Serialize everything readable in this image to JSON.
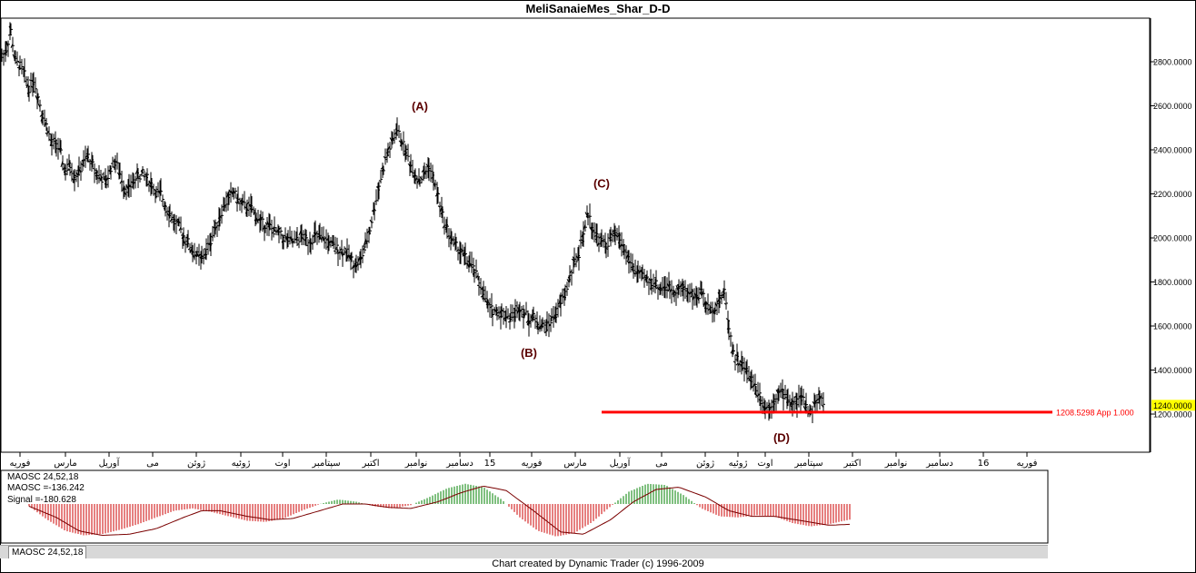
{
  "title": "MeliSanaieMes_Shar_D-D",
  "footer": "Chart created by Dynamic Trader  (c) 1996-2009",
  "colors": {
    "up": "#008000",
    "down": "#cc0000",
    "line": "#000000",
    "level": "#ff0000",
    "highlight": "#ffff00",
    "wave_label": "#5a0000"
  },
  "chart_data": [
    {
      "type": "line",
      "style": "ohlc-bars",
      "y_ticks": [
        "2800.0000",
        "2600.0000",
        "2400.0000",
        "2200.0000",
        "2000.0000",
        "1800.0000",
        "1600.0000",
        "1400.0000",
        "1200.0000"
      ],
      "ylim": [
        1000,
        2960
      ],
      "x_labels": [
        "فوریه",
        "مارس",
        "آوریل",
        "می",
        "ژوئن",
        "ژوئیه",
        "اوت",
        "سپتامبر",
        "اکتبر",
        "نوامبر",
        "دسامبر",
        "15",
        "فوریه",
        "مارس",
        "آوریل",
        "می",
        "ژوئن",
        "ژوئیه",
        "اوت",
        "سپتامبر",
        "اکتبر",
        "نوامبر",
        "دسامبر",
        "16",
        "فوریه"
      ],
      "x_label_index": [
        0,
        50,
        98,
        146,
        194,
        243,
        289,
        337,
        386,
        436,
        484,
        517,
        563,
        611,
        660,
        706,
        754,
        790,
        820,
        868,
        916,
        964,
        1012,
        1060,
        1108
      ],
      "last_price": "1240.0000",
      "level": {
        "value": 1208.5298,
        "label": "1208.5298 App 1.000"
      },
      "wave_labels": [
        {
          "text": "(A)",
          "i": 440,
          "price": 2530
        },
        {
          "text": "(B)",
          "i": 560,
          "price": 1575
        },
        {
          "text": "(C)",
          "i": 640,
          "price": 2180
        },
        {
          "text": "(D)",
          "i": 838,
          "price": 1190
        }
      ],
      "series": [
        {
          "name": "price",
          "points": [
            [
              0,
              2820
            ],
            [
              5,
              2860
            ],
            [
              10,
              2940
            ],
            [
              15,
              2800
            ],
            [
              20,
              2780
            ],
            [
              25,
              2740
            ],
            [
              30,
              2680
            ],
            [
              35,
              2720
            ],
            [
              40,
              2640
            ],
            [
              45,
              2560
            ],
            [
              50,
              2500
            ],
            [
              55,
              2420
            ],
            [
              60,
              2430
            ],
            [
              65,
              2380
            ],
            [
              70,
              2300
            ],
            [
              75,
              2330
            ],
            [
              80,
              2280
            ],
            [
              85,
              2300
            ],
            [
              90,
              2340
            ],
            [
              95,
              2370
            ],
            [
              100,
              2330
            ],
            [
              105,
              2290
            ],
            [
              110,
              2270
            ],
            [
              115,
              2250
            ],
            [
              120,
              2320
            ],
            [
              125,
              2350
            ],
            [
              130,
              2290
            ],
            [
              135,
              2230
            ],
            [
              140,
              2220
            ],
            [
              145,
              2260
            ],
            [
              150,
              2280
            ],
            [
              155,
              2290
            ],
            [
              160,
              2270
            ],
            [
              165,
              2240
            ],
            [
              170,
              2200
            ],
            [
              175,
              2200
            ],
            [
              180,
              2150
            ],
            [
              185,
              2110
            ],
            [
              190,
              2070
            ],
            [
              195,
              2050
            ],
            [
              200,
              2010
            ],
            [
              205,
              1980
            ],
            [
              210,
              1940
            ],
            [
              215,
              1920
            ],
            [
              220,
              1900
            ],
            [
              225,
              1940
            ],
            [
              230,
              1990
            ],
            [
              235,
              2050
            ],
            [
              240,
              2100
            ],
            [
              245,
              2150
            ],
            [
              250,
              2180
            ],
            [
              255,
              2210
            ],
            [
              260,
              2170
            ],
            [
              265,
              2150
            ],
            [
              270,
              2140
            ],
            [
              275,
              2130
            ],
            [
              280,
              2100
            ],
            [
              285,
              2070
            ],
            [
              290,
              2060
            ],
            [
              295,
              2050
            ],
            [
              300,
              2030
            ],
            [
              305,
              2020
            ],
            [
              310,
              2000
            ],
            [
              315,
              1990
            ],
            [
              320,
              1980
            ],
            [
              325,
              1990
            ],
            [
              330,
              2010
            ],
            [
              335,
              1990
            ],
            [
              340,
              1990
            ],
            [
              345,
              2010
            ],
            [
              350,
              2000
            ],
            [
              355,
              1990
            ],
            [
              360,
              1980
            ],
            [
              365,
              1960
            ],
            [
              370,
              1950
            ],
            [
              375,
              1940
            ],
            [
              380,
              1930
            ],
            [
              385,
              1900
            ],
            [
              390,
              1880
            ],
            [
              395,
              1900
            ],
            [
              400,
              1960
            ],
            [
              405,
              2040
            ],
            [
              410,
              2140
            ],
            [
              415,
              2240
            ],
            [
              420,
              2320
            ],
            [
              425,
              2390
            ],
            [
              430,
              2440
            ],
            [
              435,
              2490
            ],
            [
              440,
              2440
            ],
            [
              445,
              2390
            ],
            [
              450,
              2330
            ],
            [
              455,
              2290
            ],
            [
              460,
              2260
            ],
            [
              465,
              2290
            ],
            [
              470,
              2330
            ],
            [
              475,
              2260
            ],
            [
              480,
              2190
            ],
            [
              485,
              2100
            ],
            [
              490,
              2040
            ],
            [
              495,
              1990
            ],
            [
              500,
              1960
            ],
            [
              505,
              1940
            ],
            [
              510,
              1910
            ],
            [
              515,
              1880
            ],
            [
              520,
              1850
            ],
            [
              525,
              1800
            ],
            [
              530,
              1750
            ],
            [
              535,
              1690
            ],
            [
              540,
              1670
            ],
            [
              545,
              1665
            ],
            [
              550,
              1660
            ],
            [
              555,
              1650
            ],
            [
              560,
              1640
            ],
            [
              565,
              1660
            ],
            [
              570,
              1690
            ],
            [
              575,
              1660
            ],
            [
              580,
              1630
            ],
            [
              585,
              1640
            ],
            [
              590,
              1610
            ],
            [
              595,
              1600
            ],
            [
              600,
              1600
            ],
            [
              605,
              1630
            ],
            [
              610,
              1660
            ],
            [
              615,
              1700
            ],
            [
              620,
              1750
            ],
            [
              625,
              1820
            ],
            [
              630,
              1890
            ],
            [
              635,
              1930
            ],
            [
              640,
              2020
            ],
            [
              645,
              2110
            ],
            [
              650,
              2050
            ],
            [
              655,
              2000
            ],
            [
              660,
              1980
            ],
            [
              665,
              1970
            ],
            [
              670,
              1990
            ],
            [
              675,
              2020
            ],
            [
              680,
              1990
            ],
            [
              685,
              1950
            ],
            [
              690,
              1900
            ],
            [
              695,
              1860
            ],
            [
              700,
              1840
            ],
            [
              705,
              1820
            ],
            [
              710,
              1810
            ],
            [
              715,
              1800
            ],
            [
              720,
              1790
            ],
            [
              725,
              1770
            ],
            [
              730,
              1780
            ],
            [
              735,
              1770
            ],
            [
              740,
              1760
            ],
            [
              745,
              1770
            ],
            [
              750,
              1770
            ],
            [
              755,
              1760
            ],
            [
              760,
              1740
            ],
            [
              765,
              1730
            ],
            [
              770,
              1760
            ],
            [
              775,
              1690
            ],
            [
              780,
              1670
            ],
            [
              785,
              1690
            ],
            [
              790,
              1720
            ],
            [
              795,
              1760
            ],
            [
              800,
              1600
            ],
            [
              805,
              1480
            ],
            [
              810,
              1440
            ],
            [
              815,
              1420
            ],
            [
              820,
              1390
            ],
            [
              825,
              1360
            ],
            [
              830,
              1320
            ],
            [
              835,
              1280
            ],
            [
              840,
              1230
            ],
            [
              845,
              1230
            ],
            [
              850,
              1270
            ],
            [
              855,
              1300
            ],
            [
              860,
              1290
            ],
            [
              865,
              1270
            ],
            [
              870,
              1240
            ],
            [
              875,
              1260
            ],
            [
              880,
              1270
            ],
            [
              885,
              1240
            ],
            [
              890,
              1210
            ],
            [
              895,
              1250
            ],
            [
              900,
              1270
            ],
            [
              905,
              1250
            ]
          ]
        }
      ]
    },
    {
      "type": "bar",
      "label_name": "MAOSC 24,52,18",
      "label_maosc": "MAOSC =-136.242",
      "label_signal": "Signal =-180.628",
      "tab": "MAOSC 24,52,18",
      "ylim": [
        -300,
        200
      ],
      "series": [
        {
          "name": "MAOSC",
          "points": [
            [
              0,
              -20
            ],
            [
              20,
              -140
            ],
            [
              40,
              -240
            ],
            [
              60,
              -280
            ],
            [
              80,
              -270
            ],
            [
              100,
              -230
            ],
            [
              120,
              -180
            ],
            [
              140,
              -120
            ],
            [
              160,
              -60
            ],
            [
              180,
              -40
            ],
            [
              200,
              -70
            ],
            [
              220,
              -110
            ],
            [
              240,
              -150
            ],
            [
              260,
              -160
            ],
            [
              280,
              -130
            ],
            [
              300,
              -60
            ],
            [
              320,
              0
            ],
            [
              340,
              40
            ],
            [
              360,
              20
            ],
            [
              380,
              -20
            ],
            [
              400,
              -40
            ],
            [
              420,
              -10
            ],
            [
              440,
              60
            ],
            [
              460,
              140
            ],
            [
              480,
              180
            ],
            [
              500,
              150
            ],
            [
              520,
              40
            ],
            [
              540,
              -120
            ],
            [
              560,
              -240
            ],
            [
              580,
              -290
            ],
            [
              600,
              -260
            ],
            [
              620,
              -160
            ],
            [
              640,
              -20
            ],
            [
              660,
              110
            ],
            [
              680,
              180
            ],
            [
              700,
              170
            ],
            [
              720,
              80
            ],
            [
              740,
              -40
            ],
            [
              760,
              -110
            ],
            [
              780,
              -120
            ],
            [
              800,
              -100
            ],
            [
              820,
              -110
            ],
            [
              840,
              -170
            ],
            [
              860,
              -200
            ],
            [
              880,
              -180
            ],
            [
              905,
              -136
            ]
          ]
        },
        {
          "name": "Signal",
          "points": [
            [
              0,
              -20
            ],
            [
              30,
              -120
            ],
            [
              55,
              -240
            ],
            [
              80,
              -280
            ],
            [
              110,
              -270
            ],
            [
              140,
              -220
            ],
            [
              170,
              -120
            ],
            [
              190,
              -60
            ],
            [
              210,
              -60
            ],
            [
              240,
              -110
            ],
            [
              265,
              -140
            ],
            [
              290,
              -130
            ],
            [
              320,
              -60
            ],
            [
              345,
              0
            ],
            [
              370,
              0
            ],
            [
              395,
              -30
            ],
            [
              420,
              -40
            ],
            [
              450,
              20
            ],
            [
              475,
              100
            ],
            [
              500,
              160
            ],
            [
              525,
              120
            ],
            [
              555,
              -60
            ],
            [
              585,
              -250
            ],
            [
              610,
              -270
            ],
            [
              640,
              -140
            ],
            [
              665,
              20
            ],
            [
              690,
              130
            ],
            [
              715,
              150
            ],
            [
              745,
              60
            ],
            [
              770,
              -60
            ],
            [
              795,
              -110
            ],
            [
              820,
              -110
            ],
            [
              850,
              -150
            ],
            [
              880,
              -190
            ],
            [
              905,
              -181
            ]
          ]
        }
      ]
    }
  ]
}
